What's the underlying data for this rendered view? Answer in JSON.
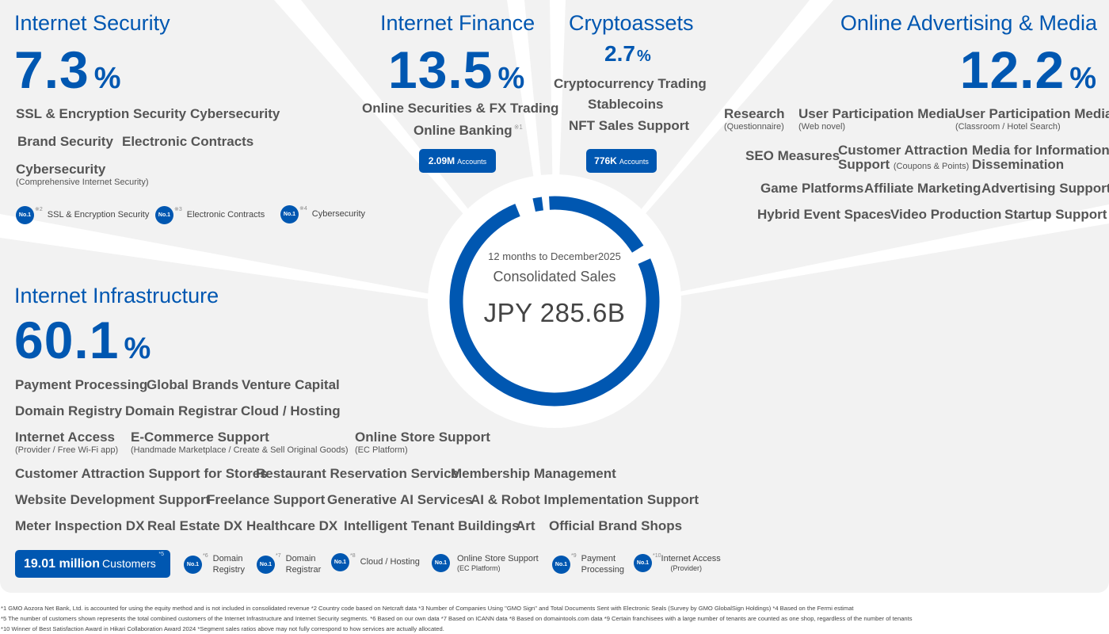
{
  "center": {
    "period": "12 months to December2025",
    "label": "Consolidated Sales",
    "value": "JPY 285.6B"
  },
  "internet_security": {
    "title": "Internet Security",
    "share": "7.3",
    "unit": "%",
    "services": {
      "ssl": "SSL & Encryption Security",
      "cyber": "Cybersecurity",
      "brand": "Brand Security",
      "contracts": "Electronic Contracts",
      "cyber2": "Cybersecurity",
      "cyber2_sub": "(Comprehensive Internet Security)"
    },
    "awards": [
      {
        "badge": "No.1",
        "mark": "※2",
        "label": "SSL & Encryption Security"
      },
      {
        "badge": "No.1",
        "mark": "※3",
        "label": "Electronic Contracts"
      },
      {
        "badge": "No.1",
        "mark": "※4",
        "label": "Cybersecurity"
      }
    ]
  },
  "internet_finance": {
    "title": "Internet Finance",
    "share": "13.5",
    "unit": "%",
    "services": {
      "securities": "Online Securities & FX Trading",
      "banking": "Online Banking",
      "banking_mark": "※1"
    },
    "accounts": {
      "value": "2.09M",
      "unit": "Accounts"
    }
  },
  "cryptoassets": {
    "title": "Cryptoassets",
    "share": "2.7",
    "unit": "%",
    "services": {
      "trading": "Cryptocurrency Trading",
      "stable": "Stablecoins",
      "nft": "NFT Sales Support"
    },
    "accounts": {
      "value": "776K",
      "unit": "Accounts"
    }
  },
  "online_advertising": {
    "title": "Online Advertising & Media",
    "share": "12.2",
    "unit": "%",
    "services": {
      "research": "Research",
      "research_sub": "(Questionnaire)",
      "upm1": "User Participation Media",
      "upm1_sub": "(Web novel)",
      "upm2": "User Participation Media",
      "upm2_sub": "(Classroom / Hotel Search)",
      "seo": "SEO Measures",
      "cas_line1": "Customer Attraction",
      "cas_line2": "Support",
      "cas_sub": "(Coupons & Points)",
      "media_line1": "Media for Information",
      "media_line2": "Dissemination",
      "game": "Game Platforms",
      "affiliate": "Affiliate Marketing",
      "adsupport": "Advertising Support",
      "hybrid": "Hybrid Event Spaces",
      "video": "Video Production",
      "startup": "Startup Support"
    }
  },
  "internet_infrastructure": {
    "title": "Internet Infrastructure",
    "share": "60.1",
    "unit": "%",
    "services": {
      "payment": "Payment Processing",
      "brands": "Global Brands",
      "vc": "Venture Capital",
      "registry": "Domain Registry",
      "registrar": "Domain Registrar",
      "cloud": "Cloud / Hosting",
      "access": "Internet Access",
      "access_sub": "(Provider / Free Wi-Fi app)",
      "ecom": "E-Commerce Support",
      "ecom_sub": "(Handmade Marketplace / Create & Sell Original Goods)",
      "store": "Online Store Support",
      "store_sub": "(EC Platform)",
      "stores_attract": "Customer Attraction Support for Stores",
      "restaurant": "Restaurant Reservation Service",
      "membership": "Membership Management",
      "website": "Website Development Support",
      "freelance": "Freelance Support",
      "genai": "Generative AI Services",
      "robot": "AI & Robot Implementation Support",
      "meter": "Meter Inspection DX",
      "realestate": "Real Estate DX",
      "healthcare": "Healthcare DX",
      "tenant": "Intelligent Tenant Buildings",
      "art": "Art",
      "official": "Official Brand Shops"
    },
    "customers": {
      "value": "19.01 million",
      "unit": "Customers",
      "mark": "*5"
    },
    "awards": [
      {
        "badge": "No.1",
        "mark": "*6",
        "label1": "Domain",
        "label2": "Registry"
      },
      {
        "badge": "No.1",
        "mark": "*7",
        "label1": "Domain",
        "label2": "Registrar"
      },
      {
        "badge": "No.1",
        "mark": "*8",
        "label1": "Cloud / Hosting",
        "label2": ""
      },
      {
        "badge": "No.1",
        "mark": "",
        "label1": "Online Store Support",
        "label2": "(EC Platform)"
      },
      {
        "badge": "No.1",
        "mark": "*9",
        "label1": "Payment",
        "label2": "Processing"
      },
      {
        "badge": "No.1",
        "mark": "*10",
        "label1": "Internet Access",
        "label2": "(Provider)"
      }
    ]
  },
  "footnotes": {
    "line1": "*1 GMO Aozora Net Bank, Ltd. is accounted for using the equity method and is not included in consolidated revenue    *2 Country code based on Netcraft data    *3 Number of Companies Using \"GMO Sign\" and Total Documents Sent with Electronic Seals (Survey by GMO GlobalSign Holdings)    *4 Based on the Fermi estimat",
    "line2": "*5 The number of customers shown represents the total combined customers of the Internet Infrastructure and Internet Security segments.    *6 Based on our own data    *7 Based on ICANN data    *8 Based on domaintools.com data    *9  Certain franchisees with a large number of tenants are counted as one shop, regardless of the number of tenants",
    "line3": "*10 Winner of Best Satisfaction Award in Hikari Collaboration Award 2024    *Segment sales ratios above may not fully correspond to how services are actually allocated."
  },
  "colors": {
    "accent": "#0057b1",
    "background": "#f2f2f2",
    "divider": "#ffffff"
  }
}
